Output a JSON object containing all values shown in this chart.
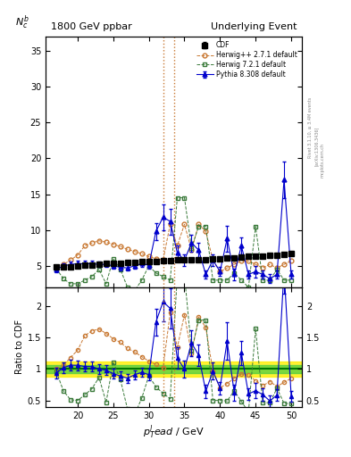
{
  "title_left": "1800 GeV ppbar",
  "title_right": "Underlying Event",
  "ylabel_main": "$N_c^b$",
  "ylabel_ratio": "Ratio to CDF",
  "xlabel": "$p_T^l ead$ / GeV",
  "rivet_text": "Rivet 3.1.10, ≥ 3.4M events",
  "arxiv_text": "[arXiv:1306.3436]",
  "mcplots_text": "mcplots.cern.ch",
  "xlim": [
    15.5,
    51.5
  ],
  "ylim_main": [
    2,
    37
  ],
  "ylim_ratio": [
    0.4,
    2.3
  ],
  "vlines": [
    32.0,
    33.5
  ],
  "vline_color": "#c87832",
  "cdf_x": [
    17,
    18,
    19,
    20,
    21,
    22,
    23,
    24,
    25,
    26,
    27,
    28,
    29,
    30,
    31,
    32,
    33,
    34,
    35,
    36,
    37,
    38,
    39,
    40,
    41,
    42,
    43,
    44,
    45,
    46,
    47,
    48,
    49,
    50
  ],
  "cdf_y": [
    4.8,
    4.9,
    4.9,
    5.0,
    5.1,
    5.1,
    5.2,
    5.3,
    5.4,
    5.4,
    5.5,
    5.5,
    5.6,
    5.6,
    5.6,
    5.7,
    5.7,
    5.8,
    5.8,
    5.8,
    5.9,
    5.9,
    6.0,
    6.0,
    6.1,
    6.1,
    6.2,
    6.3,
    6.4,
    6.4,
    6.5,
    6.5,
    6.6,
    6.7
  ],
  "cdf_yerr": [
    0.2,
    0.2,
    0.2,
    0.2,
    0.2,
    0.2,
    0.2,
    0.2,
    0.2,
    0.2,
    0.2,
    0.2,
    0.2,
    0.2,
    0.2,
    0.2,
    0.2,
    0.2,
    0.2,
    0.2,
    0.2,
    0.2,
    0.2,
    0.2,
    0.2,
    0.2,
    0.2,
    0.2,
    0.2,
    0.2,
    0.2,
    0.2,
    0.2,
    0.2
  ],
  "herwig1_x": [
    17,
    18,
    19,
    20,
    21,
    22,
    23,
    24,
    25,
    26,
    27,
    28,
    29,
    30,
    31,
    32,
    33,
    34,
    35,
    36,
    37,
    38,
    39,
    40,
    41,
    42,
    43,
    44,
    45,
    46,
    47,
    48,
    49,
    50
  ],
  "herwig1_y": [
    4.8,
    5.2,
    5.8,
    6.5,
    7.8,
    8.2,
    8.5,
    8.3,
    8.0,
    7.7,
    7.3,
    7.0,
    6.7,
    6.3,
    6.0,
    5.8,
    10.8,
    7.8,
    10.8,
    7.2,
    10.8,
    9.8,
    5.8,
    4.2,
    4.7,
    5.2,
    5.7,
    5.7,
    5.2,
    4.7,
    5.2,
    4.7,
    5.2,
    5.7
  ],
  "herwig2_x": [
    17,
    18,
    19,
    20,
    21,
    22,
    23,
    24,
    25,
    26,
    27,
    28,
    29,
    30,
    31,
    32,
    33,
    34,
    35,
    36,
    37,
    38,
    39,
    40,
    41,
    42,
    43,
    44,
    45,
    46,
    47,
    48,
    49,
    50
  ],
  "herwig2_y": [
    4.6,
    3.2,
    2.5,
    2.5,
    3.0,
    3.5,
    4.5,
    2.5,
    6.0,
    4.5,
    2.0,
    1.5,
    3.0,
    5.0,
    4.0,
    3.5,
    3.0,
    14.5,
    14.5,
    7.5,
    10.5,
    10.5,
    3.0,
    3.0,
    3.0,
    4.0,
    3.0,
    2.0,
    10.5,
    3.0,
    3.0,
    4.5,
    3.0,
    3.0
  ],
  "pythia_x": [
    17,
    18,
    19,
    20,
    21,
    22,
    23,
    24,
    25,
    26,
    27,
    28,
    29,
    30,
    31,
    32,
    33,
    34,
    35,
    36,
    37,
    38,
    39,
    40,
    41,
    42,
    43,
    44,
    45,
    46,
    47,
    48,
    49,
    50
  ],
  "pythia_y": [
    4.5,
    5.0,
    5.2,
    5.3,
    5.3,
    5.3,
    5.2,
    5.2,
    5.0,
    4.8,
    4.7,
    5.0,
    5.3,
    5.1,
    9.8,
    11.8,
    11.2,
    6.8,
    5.8,
    8.2,
    7.2,
    3.8,
    5.8,
    4.2,
    8.8,
    3.8,
    7.8,
    3.8,
    4.2,
    3.8,
    3.2,
    3.8,
    17.0,
    3.8
  ],
  "pythia_yerr": [
    0.4,
    0.4,
    0.4,
    0.4,
    0.4,
    0.4,
    0.4,
    0.4,
    0.4,
    0.4,
    0.4,
    0.4,
    0.4,
    0.5,
    1.2,
    1.8,
    1.8,
    1.0,
    0.8,
    1.2,
    1.0,
    0.6,
    0.8,
    0.6,
    1.8,
    0.8,
    1.2,
    0.6,
    0.8,
    0.6,
    0.6,
    0.6,
    2.5,
    0.6
  ],
  "cdf_color": "#000000",
  "herwig1_color": "#c87832",
  "herwig2_color": "#3a7a3a",
  "pythia_color": "#0000cc",
  "legend_entries": [
    "CDF",
    "Herwig++ 2.7.1 default",
    "Herwig 7.2.1 default",
    "Pythia 8.308 default"
  ],
  "xticks": [
    20,
    25,
    30,
    35,
    40,
    45,
    50
  ],
  "yticks_main": [
    5,
    10,
    15,
    20,
    25,
    30,
    35
  ],
  "yticks_ratio": [
    0.5,
    1.0,
    1.5,
    2.0
  ]
}
